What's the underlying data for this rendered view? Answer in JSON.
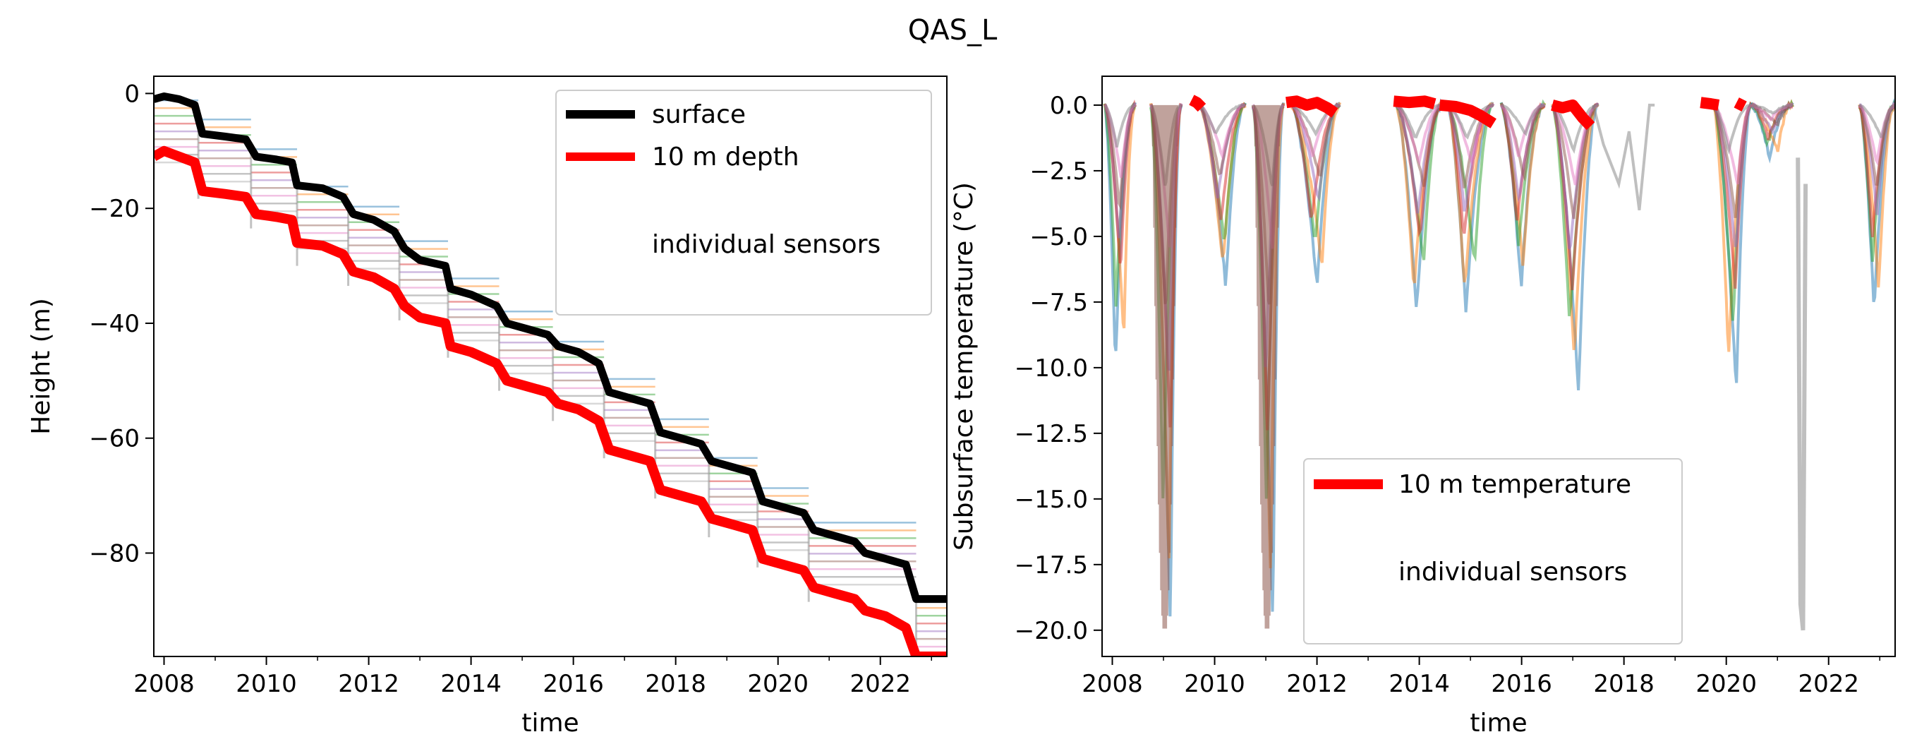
{
  "figure": {
    "title": "QAS_L"
  },
  "chart_data": [
    {
      "type": "line",
      "xlabel": "time",
      "ylabel": "Height (m)",
      "xlim": [
        2007.8,
        2023.3
      ],
      "ylim": [
        -98,
        3
      ],
      "xticks": [
        2008,
        2010,
        2012,
        2014,
        2016,
        2018,
        2020,
        2022
      ],
      "yticks": [
        0,
        -20,
        -40,
        -60,
        -80
      ],
      "legend": {
        "placement": "top-right",
        "entries": [
          "surface",
          "10 m depth",
          "individual sensors"
        ]
      },
      "series": [
        {
          "name": "surface",
          "color": "#000000",
          "x": [
            2007.8,
            2008.0,
            2008.3,
            2008.6,
            2008.75,
            2009.2,
            2009.6,
            2009.8,
            2010.2,
            2010.5,
            2010.6,
            2011.1,
            2011.5,
            2011.7,
            2012.1,
            2012.5,
            2012.7,
            2013.0,
            2013.5,
            2013.6,
            2014.0,
            2014.5,
            2014.7,
            2015.1,
            2015.5,
            2015.7,
            2016.1,
            2016.5,
            2016.7,
            2017.1,
            2017.5,
            2017.7,
            2018.1,
            2018.5,
            2018.7,
            2019.1,
            2019.5,
            2019.7,
            2020.1,
            2020.5,
            2020.7,
            2021.1,
            2021.5,
            2021.7,
            2022.1,
            2022.5,
            2022.7,
            2023.3
          ],
          "y": [
            -1,
            -0.5,
            -1,
            -2,
            -7,
            -7.5,
            -8,
            -11,
            -11.5,
            -12,
            -16,
            -16.5,
            -18,
            -21,
            -22,
            -24,
            -27,
            -29,
            -30,
            -34,
            -35,
            -37,
            -40,
            -41,
            -42,
            -44,
            -45,
            -47,
            -52,
            -53,
            -54,
            -59,
            -60,
            -61,
            -64,
            -65,
            -66,
            -71,
            -72,
            -73,
            -76,
            -77,
            -78,
            -80,
            -81,
            -82,
            -88,
            -88
          ]
        },
        {
          "name": "10 m depth",
          "color": "#ff0000",
          "x": [
            2007.8,
            2008.0,
            2008.3,
            2008.6,
            2008.75,
            2009.2,
            2009.6,
            2009.8,
            2010.2,
            2010.5,
            2010.6,
            2011.1,
            2011.5,
            2011.7,
            2012.1,
            2012.5,
            2012.7,
            2013.0,
            2013.5,
            2013.6,
            2014.0,
            2014.5,
            2014.7,
            2015.1,
            2015.5,
            2015.7,
            2016.1,
            2016.5,
            2016.7,
            2017.1,
            2017.5,
            2017.7,
            2018.1,
            2018.5,
            2018.7,
            2019.1,
            2019.5,
            2019.7,
            2020.1,
            2020.5,
            2020.7,
            2021.1,
            2021.5,
            2021.7,
            2022.1,
            2022.5,
            2022.7,
            2023.3
          ],
          "y": [
            -11,
            -10,
            -11,
            -12,
            -17,
            -17.5,
            -18,
            -21,
            -21.5,
            -22,
            -26,
            -26.5,
            -28,
            -31,
            -32,
            -34,
            -37,
            -39,
            -40,
            -44,
            -45,
            -47,
            -50,
            -51,
            -52,
            -54,
            -55,
            -57,
            -62,
            -63,
            -64,
            -69,
            -70,
            -71,
            -74,
            -75,
            -76,
            -81,
            -82,
            -83,
            -86,
            -87,
            -88,
            -90,
            -91,
            -93,
            -98,
            -98
          ]
        }
      ]
    },
    {
      "type": "line",
      "xlabel": "time",
      "ylabel": "Subsurface temperature (°C)",
      "xlim": [
        2007.8,
        2023.3
      ],
      "ylim": [
        -21,
        1.1
      ],
      "xticks": [
        2008,
        2010,
        2012,
        2014,
        2016,
        2018,
        2020,
        2022
      ],
      "yticks": [
        0.0,
        -2.5,
        -5.0,
        -7.5,
        -10.0,
        -12.5,
        -15.0,
        -17.5,
        -20.0
      ],
      "legend": {
        "placement": "lower-center",
        "entries": [
          "10 m temperature",
          "individual sensors"
        ]
      },
      "series": [
        {
          "name": "10 m temperature",
          "color": "#ff0000",
          "segments": [
            {
              "x": [
                2009.55,
                2009.65,
                2009.75
              ],
              "y": [
                0.2,
                0.1,
                -0.1
              ]
            },
            {
              "x": [
                2011.4,
                2011.6,
                2011.8,
                2012.0,
                2012.2,
                2012.35
              ],
              "y": [
                0.1,
                0.15,
                0.0,
                0.1,
                -0.1,
                -0.3
              ]
            },
            {
              "x": [
                2013.5,
                2013.8,
                2014.1,
                2014.3
              ],
              "y": [
                0.15,
                0.1,
                0.15,
                0.05
              ]
            },
            {
              "x": [
                2014.4,
                2014.7,
                2015.0,
                2015.2,
                2015.45
              ],
              "y": [
                0.0,
                -0.05,
                -0.2,
                -0.4,
                -0.7
              ]
            },
            {
              "x": [
                2016.6,
                2016.8,
                2017.0,
                2017.2,
                2017.35
              ],
              "y": [
                0.0,
                -0.1,
                0.0,
                -0.5,
                -0.8
              ]
            },
            {
              "x": [
                2019.5,
                2019.7,
                2019.85
              ],
              "y": [
                0.1,
                0.05,
                0.0
              ]
            },
            {
              "x": [
                2020.2,
                2020.35
              ],
              "y": [
                0.1,
                -0.05
              ]
            }
          ]
        }
      ]
    }
  ]
}
